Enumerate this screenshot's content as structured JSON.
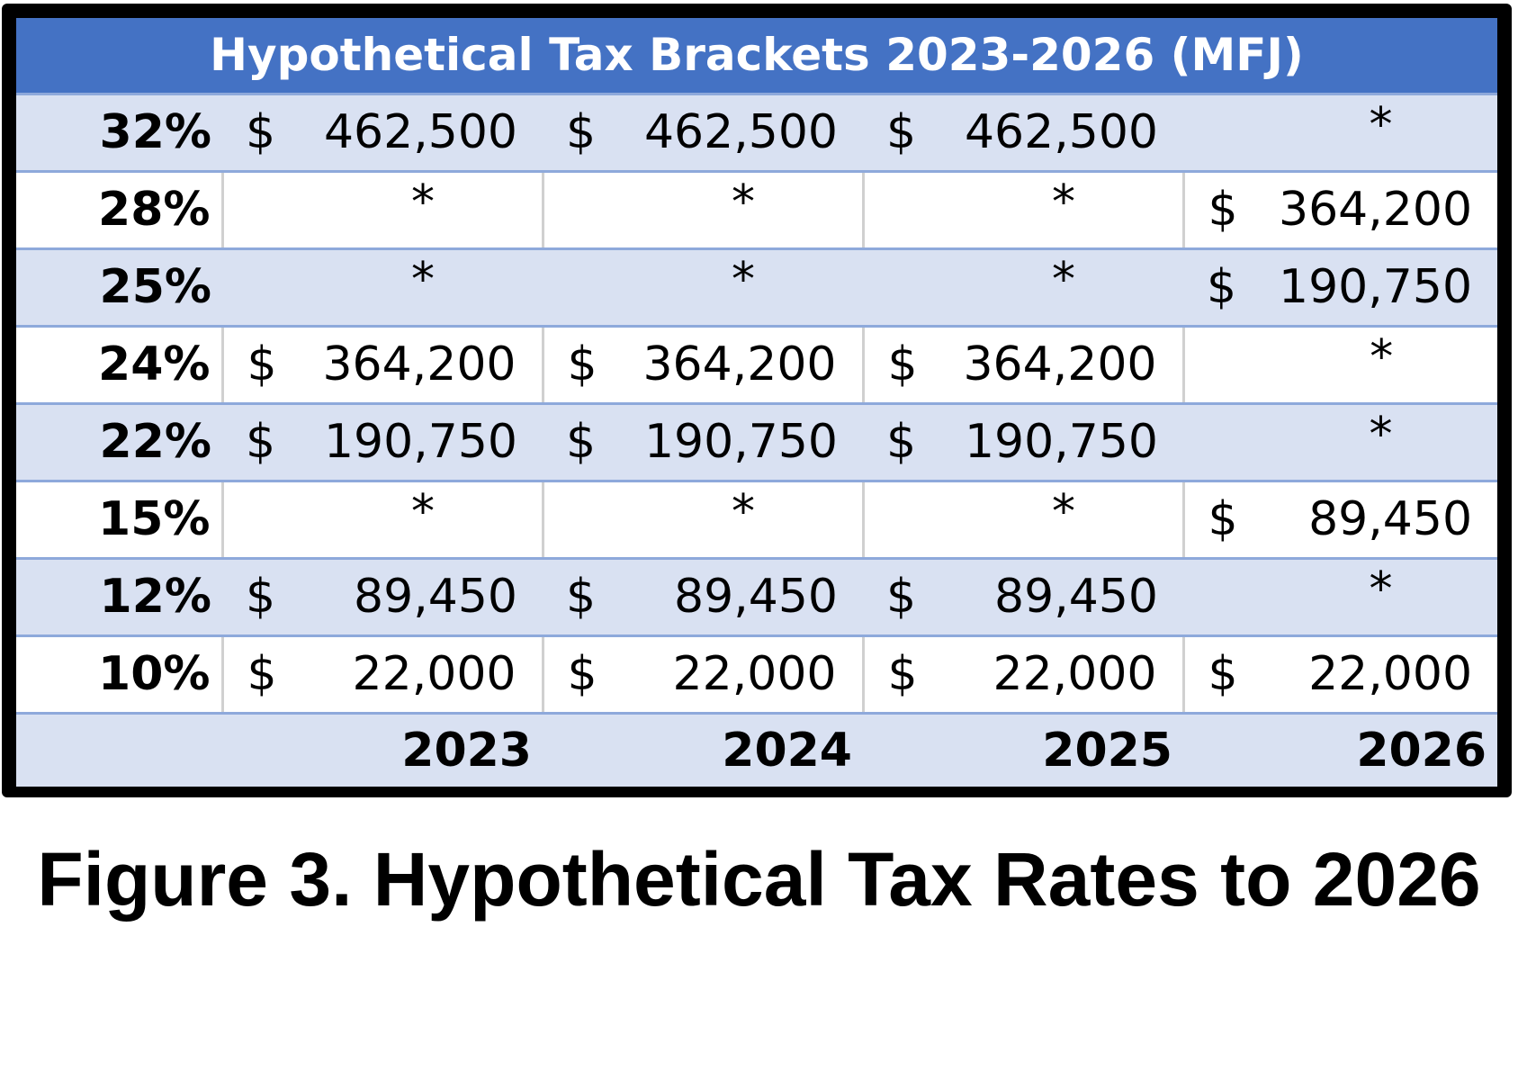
{
  "chart_data": {
    "type": "table",
    "title": "Hypothetical Tax Brackets 2023-2026 (MFJ)",
    "columns": [
      "2023",
      "2024",
      "2025",
      "2026"
    ],
    "rows": [
      {
        "rate": "32%",
        "cells": [
          {
            "sym": "$",
            "amt": "462,500"
          },
          {
            "sym": "$",
            "amt": "462,500"
          },
          {
            "sym": "$",
            "amt": "462,500"
          },
          {
            "sym": "",
            "amt": "*"
          }
        ]
      },
      {
        "rate": "28%",
        "cells": [
          {
            "sym": "",
            "amt": "*"
          },
          {
            "sym": "",
            "amt": "*"
          },
          {
            "sym": "",
            "amt": "*"
          },
          {
            "sym": "$",
            "amt": "364,200"
          }
        ]
      },
      {
        "rate": "25%",
        "cells": [
          {
            "sym": "",
            "amt": "*"
          },
          {
            "sym": "",
            "amt": "*"
          },
          {
            "sym": "",
            "amt": "*"
          },
          {
            "sym": "$",
            "amt": "190,750"
          }
        ]
      },
      {
        "rate": "24%",
        "cells": [
          {
            "sym": "$",
            "amt": "364,200"
          },
          {
            "sym": "$",
            "amt": "364,200"
          },
          {
            "sym": "$",
            "amt": "364,200"
          },
          {
            "sym": "",
            "amt": "*"
          }
        ]
      },
      {
        "rate": "22%",
        "cells": [
          {
            "sym": "$",
            "amt": "190,750"
          },
          {
            "sym": "$",
            "amt": "190,750"
          },
          {
            "sym": "$",
            "amt": "190,750"
          },
          {
            "sym": "",
            "amt": "*"
          }
        ]
      },
      {
        "rate": "15%",
        "cells": [
          {
            "sym": "",
            "amt": "*"
          },
          {
            "sym": "",
            "amt": "*"
          },
          {
            "sym": "",
            "amt": "*"
          },
          {
            "sym": "$",
            "amt": "89,450"
          }
        ]
      },
      {
        "rate": "12%",
        "cells": [
          {
            "sym": "$",
            "amt": "89,450"
          },
          {
            "sym": "$",
            "amt": "89,450"
          },
          {
            "sym": "$",
            "amt": "89,450"
          },
          {
            "sym": "",
            "amt": "*"
          }
        ]
      },
      {
        "rate": "10%",
        "cells": [
          {
            "sym": "$",
            "amt": "22,000"
          },
          {
            "sym": "$",
            "amt": "22,000"
          },
          {
            "sym": "$",
            "amt": "22,000"
          },
          {
            "sym": "$",
            "amt": "22,000"
          }
        ]
      }
    ]
  },
  "caption": "Figure 3. Hypothetical Tax Rates to 2026",
  "colors": {
    "header_bg": "#4472c4",
    "header_text": "#ffffff",
    "band_light": "#d9e1f2",
    "band_white": "#ffffff",
    "row_rule": "#8ea9db",
    "frame": "#000000"
  }
}
